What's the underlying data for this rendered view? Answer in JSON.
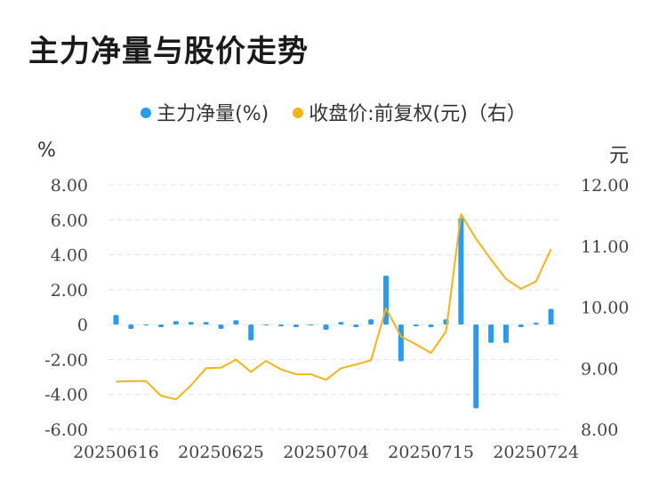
{
  "title": "主力净量与股价走势",
  "colors": {
    "bar": "#2E9BEA",
    "line": "#F2B418",
    "grid": "#e2e2e2"
  },
  "chart_data": {
    "type": "bar+line",
    "legend": [
      {
        "name": "主力净量(%)",
        "color": "#2E9BEA"
      },
      {
        "name": "收盘价:前复权(元)（右）",
        "color": "#F2B418"
      }
    ],
    "y_left_unit": "%",
    "y_right_unit": "元",
    "y_left": {
      "min": -6,
      "max": 8,
      "step": 2,
      "ticks": [
        "-6.00",
        "-4.00",
        "-2.00",
        "0",
        "2.00",
        "4.00",
        "6.00",
        "8.00"
      ]
    },
    "y_right": {
      "min": 8,
      "max": 12,
      "step": 1,
      "ticks": [
        "8.00",
        "9.00",
        "10.00",
        "11.00",
        "12.00"
      ]
    },
    "x_tick_labels": [
      "20250616",
      "20250625",
      "20250704",
      "20250715",
      "20250724"
    ],
    "x_tick_indices": [
      0,
      7,
      14,
      21,
      28
    ],
    "n_points": 30,
    "series": [
      {
        "name": "主力净量(%)",
        "type": "bar",
        "values": [
          0.55,
          -0.25,
          -0.05,
          -0.15,
          0.2,
          0.15,
          0.15,
          -0.25,
          0.25,
          -0.9,
          -0.05,
          -0.1,
          -0.15,
          -0.05,
          -0.3,
          0.15,
          -0.15,
          0.3,
          2.8,
          -2.1,
          -0.1,
          -0.15,
          0.3,
          6.1,
          -4.8,
          -1.05,
          -1.05,
          -0.15,
          0.1,
          0.9
        ]
      },
      {
        "name": "收盘价:前复权(元)（右）",
        "type": "line",
        "values": [
          8.78,
          8.79,
          8.79,
          8.55,
          8.49,
          8.72,
          9.0,
          9.01,
          9.14,
          8.94,
          9.12,
          8.98,
          8.9,
          8.9,
          8.81,
          9.0,
          9.06,
          9.13,
          9.98,
          9.52,
          9.39,
          9.25,
          9.6,
          11.52,
          11.12,
          10.78,
          10.46,
          10.3,
          10.42,
          10.95
        ]
      }
    ]
  }
}
